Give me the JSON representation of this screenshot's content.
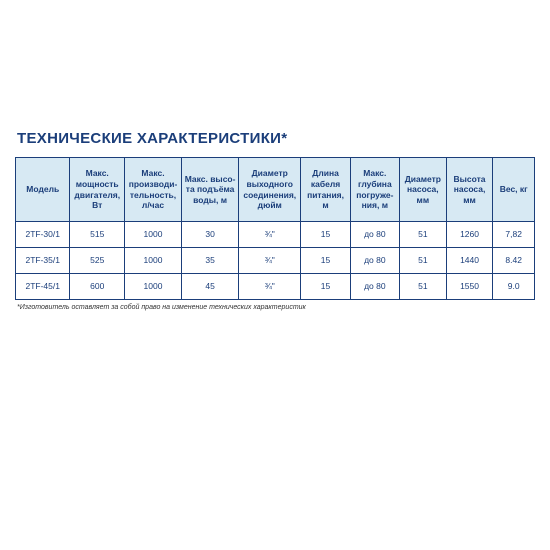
{
  "title": "ТЕХНИЧЕСКИЕ ХАРАКТЕРИСТИКИ*",
  "footnote": "*Изготовитель оставляет за собой право на изменение технических характеристик",
  "table": {
    "type": "table",
    "header_bg": "#d7e9f3",
    "border_color": "#1b3e7a",
    "text_color": "#1b3e7a",
    "title_fontsize": 15,
    "header_fontsize": 8.5,
    "cell_fontsize": 8.5,
    "columns": [
      {
        "key": "model",
        "label": "Модель",
        "width": "10.5%"
      },
      {
        "key": "power",
        "label": "Макс. мощность двигателя, Вт",
        "width": "10.5%"
      },
      {
        "key": "prod",
        "label": "Макс. производи-тельность, л/час",
        "width": "11%"
      },
      {
        "key": "head",
        "label": "Макс. высо-та подъёма воды, м",
        "width": "11%"
      },
      {
        "key": "out",
        "label": "Диаметр выходного соединения, дюйм",
        "width": "12%"
      },
      {
        "key": "cable",
        "label": "Длина кабеля питания, м",
        "width": "9.5%"
      },
      {
        "key": "depth",
        "label": "Макс. глубина погруже-ния, м",
        "width": "9.5%"
      },
      {
        "key": "diam",
        "label": "Диаметр насоса, мм",
        "width": "9%"
      },
      {
        "key": "height",
        "label": "Высота насоса, мм",
        "width": "9%"
      },
      {
        "key": "weight",
        "label": "Вес, кг",
        "width": "8%"
      }
    ],
    "rows": [
      {
        "model": "2TF-30/1",
        "power": "515",
        "prod": "1000",
        "head": "30",
        "out": "¾\"",
        "cable": "15",
        "depth": "до 80",
        "diam": "51",
        "height": "1260",
        "weight": "7,82"
      },
      {
        "model": "2TF-35/1",
        "power": "525",
        "prod": "1000",
        "head": "35",
        "out": "¾\"",
        "cable": "15",
        "depth": "до 80",
        "diam": "51",
        "height": "1440",
        "weight": "8.42"
      },
      {
        "model": "2TF-45/1",
        "power": "600",
        "prod": "1000",
        "head": "45",
        "out": "¾\"",
        "cable": "15",
        "depth": "до 80",
        "diam": "51",
        "height": "1550",
        "weight": "9.0"
      }
    ]
  }
}
